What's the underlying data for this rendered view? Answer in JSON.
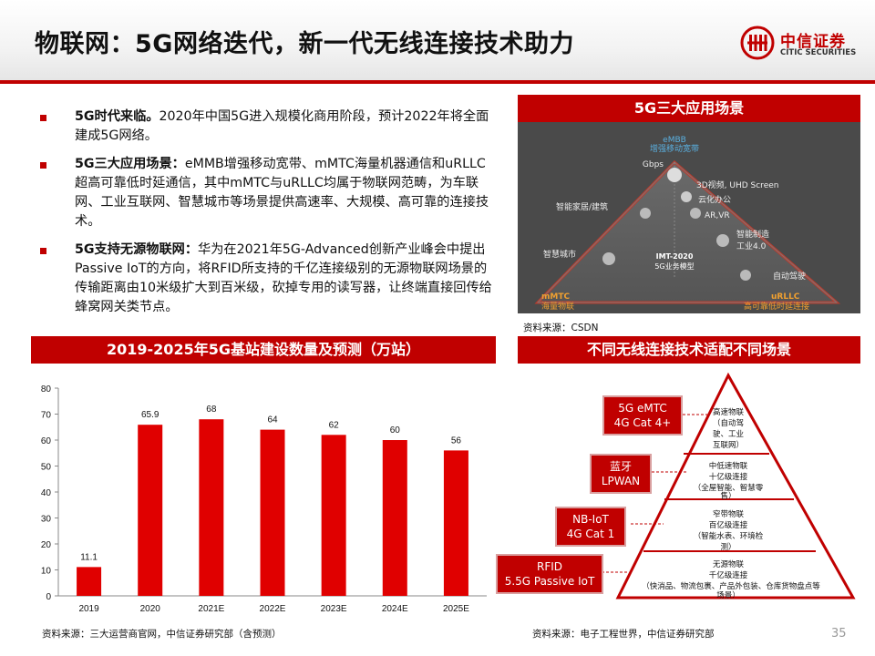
{
  "title": "物联网：5G网络迭代，新一代无线连接技术助力",
  "logo": {
    "cn": "中信证券",
    "en": "CITIC SECURITIES"
  },
  "bullets": [
    {
      "head": "5G时代来临。",
      "body": "2020年中国5G进入规模化商用阶段，预计2022年将全面建成5G网络。"
    },
    {
      "head": "5G三大应用场景：",
      "body": "eMMB增强移动宽带、mMTC海量机器通信和uRLLC超高可靠低时延通信，其中mMTC与uRLLC均属于物联网范畴，为车联网、工业互联网、智慧城市等场景提供高速率、大规模、高可靠的连接技术。"
    },
    {
      "head": "5G支持无源物联网：",
      "body": "华为在2021年5G-Advanced创新产业峰会中提出Passive IoT的方向，将RFID所支持的千亿连接级别的无源物联网场景的传输距离由10米级扩大到百米级，砍掉专用的读写器，让终端直接回传给蜂窝网关类节点。"
    }
  ],
  "scenarios_panel": {
    "title": "5G三大应用场景",
    "source": "资料来源：CSDN",
    "labels": {
      "embb": "eMBB",
      "embb_sub": "增强移动宽带",
      "gbps": "Gbps",
      "video": "3D视频, UHD Screen",
      "office": "云化办公",
      "arvr": "AR,VR",
      "home": "智能家居/建筑",
      "manufacturing": "智能制造",
      "industry": "工业4.0",
      "city": "智慧城市",
      "imt": "IMT-2020",
      "imt_sub": "5G业务模型",
      "autodrive": "自动驾驶",
      "mmtc": "mMTC",
      "mmtc_sub": "海量物联",
      "urllc": "uRLLC",
      "urllc_sub": "高可靠低时延连接"
    }
  },
  "bar_panel": {
    "title": "2019-2025年5G基站建设数量及预测（万站）",
    "source": "资料来源：三大运营商官网，中信证券研究部（含预测）"
  },
  "chart_data": {
    "type": "bar",
    "categories": [
      "2019",
      "2020",
      "2021E",
      "2022E",
      "2023E",
      "2024E",
      "2025E"
    ],
    "values": [
      11.1,
      65.9,
      68,
      64,
      62,
      60,
      56
    ],
    "value_labels": [
      "11.1",
      "65.9",
      "68",
      "64",
      "62",
      "60",
      "56"
    ],
    "ylim": [
      0,
      80
    ],
    "yticks": [
      "0",
      "10",
      "20",
      "30",
      "40",
      "50",
      "60",
      "70",
      "80"
    ],
    "bar_color": "#e00000",
    "grid": false
  },
  "pyramid_panel": {
    "title": "不同无线连接技术适配不同场景",
    "source": "资料来源：电子工程世界，中信证券研究部",
    "tags": [
      {
        "l1": "5G eMTC",
        "l2": "4G Cat 4+"
      },
      {
        "l1": "蓝牙",
        "l2": "LPWAN"
      },
      {
        "l1": "NB-IoT",
        "l2": "4G Cat 1"
      },
      {
        "l1": "RFID",
        "l2": "5.5G Passive IoT"
      }
    ],
    "layers": [
      {
        "l1": "高速物联",
        "l2": "（自动驾",
        "l3": "驶、工业",
        "l4": "互联网）"
      },
      {
        "l1": "中低速物联",
        "l2": "十亿级连接",
        "l3": "（全屋智能、智慧零",
        "l4": "售）"
      },
      {
        "l1": "窄带物联",
        "l2": "百亿级连接",
        "l3": "（智能水表、环境检",
        "l4": "测）"
      },
      {
        "l1": "无源物联",
        "l2": "千亿级连接",
        "l3": "（快消品、物流包裹、产品外包装、仓库货物盘点等",
        "l4": "场景）"
      }
    ]
  },
  "page_number": "35",
  "colors": {
    "accent": "#c00000",
    "header_bg": "#f3f3f3"
  }
}
